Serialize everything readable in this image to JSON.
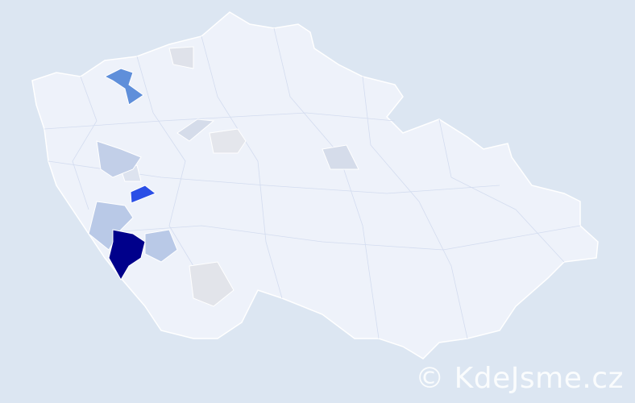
{
  "map": {
    "base_color": "#eef2fa",
    "border_color": "#d3dcef",
    "background_color": "#dce6f2",
    "highlight_colors": {
      "highest": "#00008b",
      "high": "#2b4fe6",
      "medium": "#5f8fda",
      "low": "#b9c9e7",
      "lowest": "#dfe2ea"
    }
  },
  "watermark": {
    "text": "© KdeJsme.cz"
  }
}
